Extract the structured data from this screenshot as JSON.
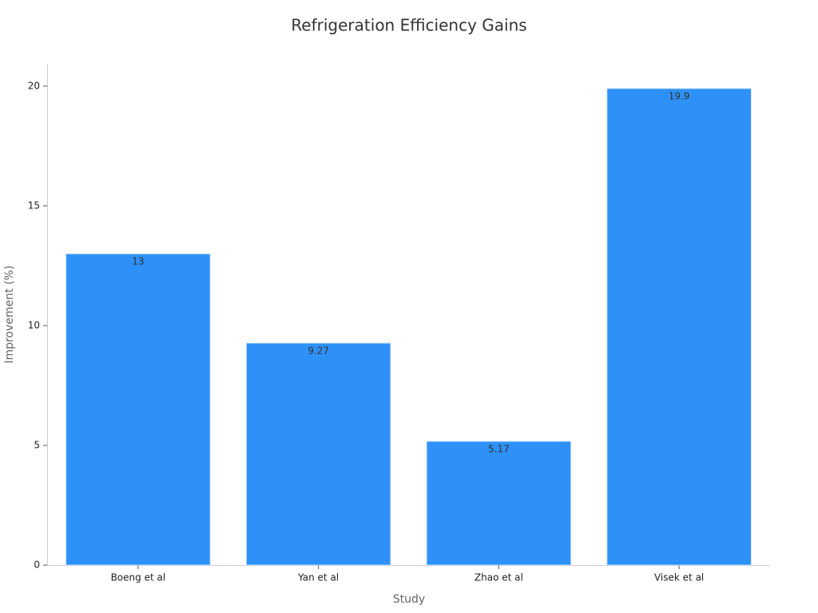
{
  "chart_data": {
    "type": "bar",
    "title": "Refrigeration Efficiency Gains",
    "x_label": "Study",
    "y_label": "Improvement (%)",
    "categories": [
      "Boeng et al",
      "Yan et al",
      "Zhao et al",
      "Visek et al"
    ],
    "values": [
      13,
      9.27,
      5.17,
      19.9
    ],
    "color": "#2e91f8",
    "ylim": [
      0,
      20.93
    ],
    "yticks": [
      0,
      5,
      10,
      15,
      20
    ],
    "grid": false
  }
}
